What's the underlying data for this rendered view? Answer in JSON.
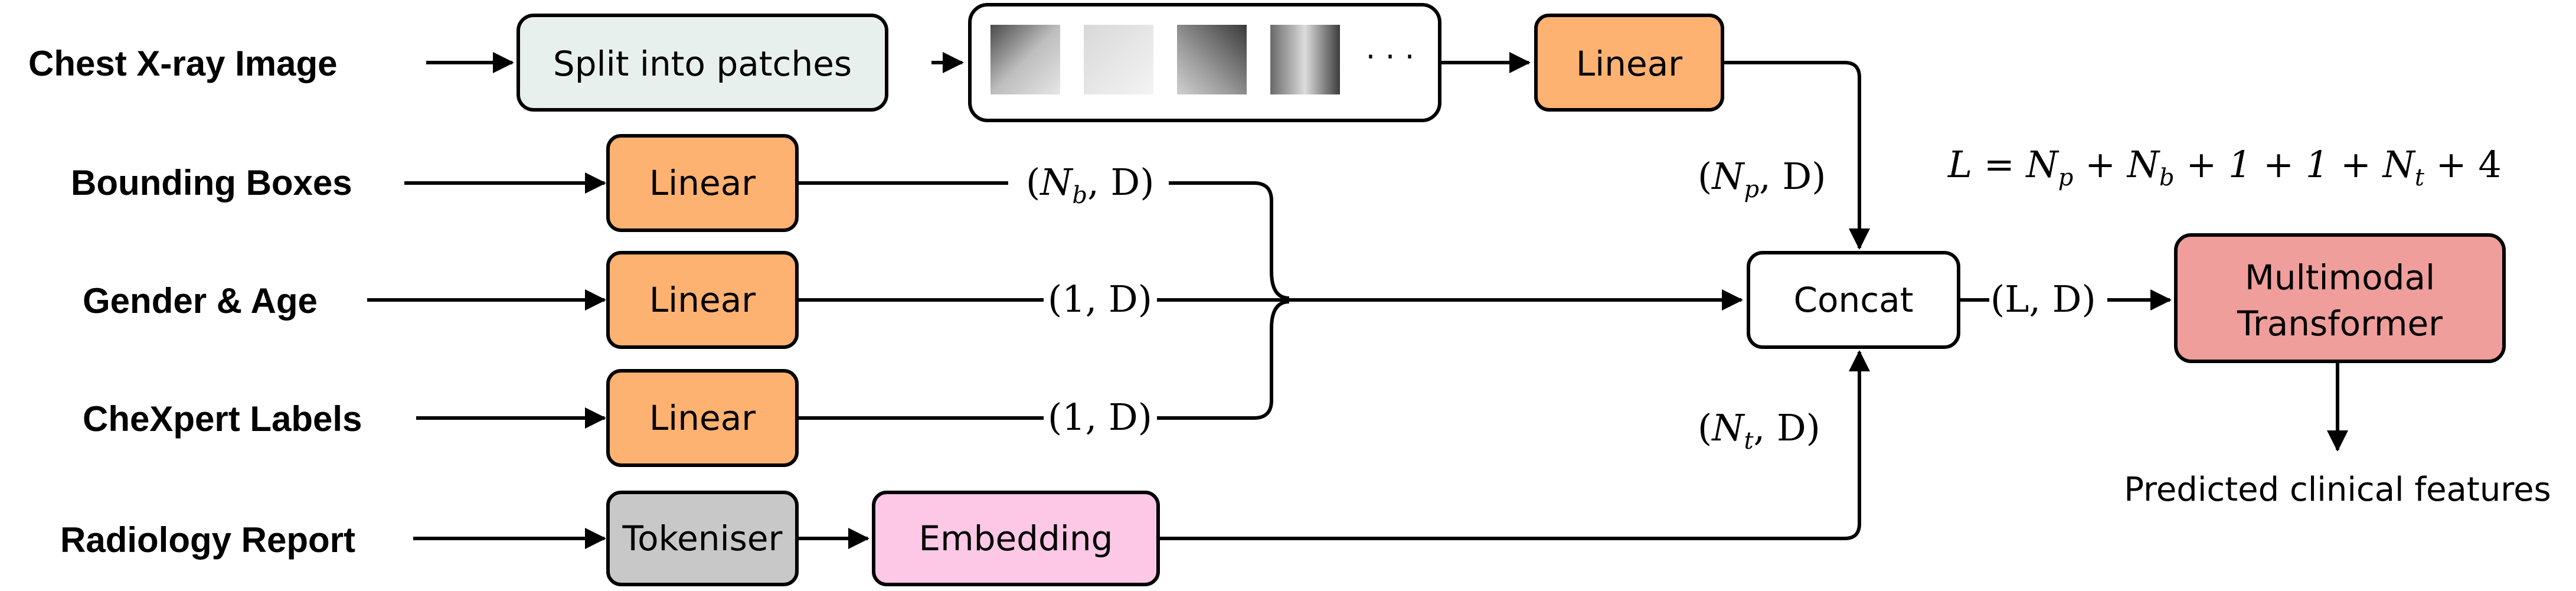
{
  "inputs": {
    "chest_xray": "Chest X-ray Image",
    "bounding_boxes": "Bounding Boxes",
    "gender_age": "Gender & Age",
    "chexpert": "CheXpert Labels",
    "radiology_report": "Radiology Report"
  },
  "boxes": {
    "split_patches": "Split into patches",
    "linear": "Linear",
    "tokeniser": "Tokeniser",
    "embedding": "Embedding",
    "concat": "Concat",
    "transformer_line1": "Multimodal",
    "transformer_line2": "Transformer"
  },
  "patches": {
    "ellipsis": "· · ·"
  },
  "dims": {
    "np": {
      "open": "(",
      "n": "N",
      "sub": "p",
      "rest": ", D)"
    },
    "nb": {
      "open": "(",
      "n": "N",
      "sub": "b",
      "rest": ", D)"
    },
    "one_a": "(1, D)",
    "one_b": "(1, D)",
    "nt": {
      "open": "(",
      "n": "N",
      "sub": "t",
      "rest": ", D)"
    },
    "ld": "(L, D)"
  },
  "equation": {
    "lhs": "L = N",
    "p": "p",
    "mid1": " + N",
    "b": "b",
    "mid2": " + 1 + 1 + N",
    "t": "t",
    "end": " + 4"
  },
  "output": "Predicted clinical features",
  "colors": {
    "split_fill": "#e8f0ee",
    "linear_fill": "#fdb272",
    "tokeniser_fill": "#c8c8c8",
    "embedding_fill": "#fcc8e6",
    "transformer_fill": "#ef9e9b",
    "concat_fill": "#ffffff"
  }
}
